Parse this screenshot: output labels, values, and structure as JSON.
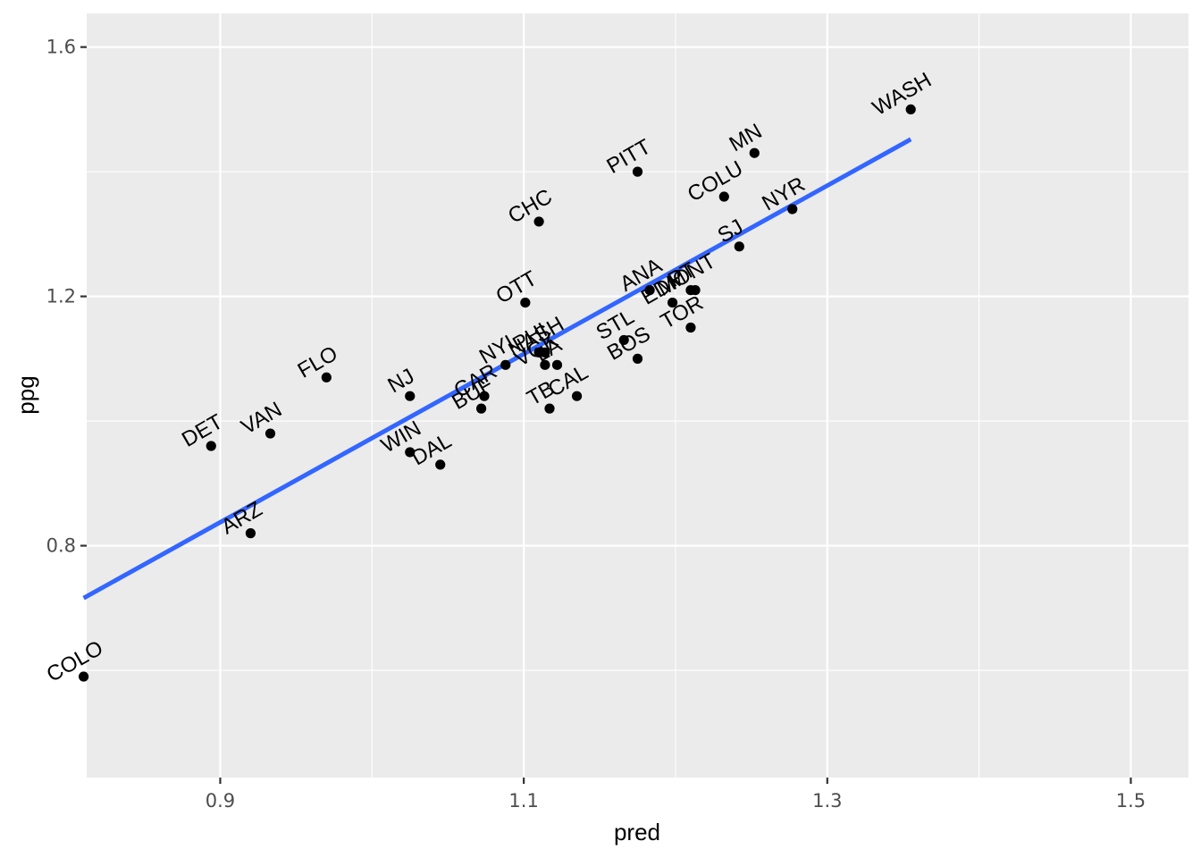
{
  "chart_data": {
    "type": "scatter",
    "title": "",
    "xlabel": "pred",
    "ylabel": "ppg",
    "xlim": [
      0.812,
      1.538
    ],
    "ylim": [
      0.428,
      1.654
    ],
    "x_ticks": [
      0.9,
      1.1,
      1.3,
      1.5
    ],
    "x_tick_labels": [
      "0.9",
      "1.1",
      "1.3",
      "1.5"
    ],
    "y_ticks": [
      0.8,
      1.2,
      1.6
    ],
    "y_tick_labels": [
      "0.8",
      "1.2",
      "1.6"
    ],
    "grid": true,
    "colors": {
      "panel": "#EBEBEB",
      "grid": "#FFFFFF",
      "point": "#000000",
      "fit_line": "#3366FF"
    },
    "points": [
      {
        "label": "COLO",
        "x": 0.81,
        "y": 0.59
      },
      {
        "label": "ARZ",
        "x": 0.92,
        "y": 0.82
      },
      {
        "label": "DET",
        "x": 0.894,
        "y": 0.96
      },
      {
        "label": "VAN",
        "x": 0.933,
        "y": 0.98
      },
      {
        "label": "FLO",
        "x": 0.97,
        "y": 1.07
      },
      {
        "label": "NJ",
        "x": 1.025,
        "y": 1.04
      },
      {
        "label": "WIN",
        "x": 1.025,
        "y": 0.95
      },
      {
        "label": "DAL",
        "x": 1.045,
        "y": 0.93
      },
      {
        "label": "BUF",
        "x": 1.072,
        "y": 1.02
      },
      {
        "label": "CAR",
        "x": 1.074,
        "y": 1.04
      },
      {
        "label": "NYI",
        "x": 1.088,
        "y": 1.09
      },
      {
        "label": "PHI",
        "x": 1.11,
        "y": 1.11
      },
      {
        "label": "NASH",
        "x": 1.114,
        "y": 1.11
      },
      {
        "label": "VGK",
        "x": 1.114,
        "y": 1.09
      },
      {
        "label": "TB",
        "x": 1.117,
        "y": 1.02
      },
      {
        "label": "LA",
        "x": 1.122,
        "y": 1.09
      },
      {
        "label": "CAL",
        "x": 1.135,
        "y": 1.04
      },
      {
        "label": "OTT",
        "x": 1.101,
        "y": 1.19
      },
      {
        "label": "CHC",
        "x": 1.11,
        "y": 1.32
      },
      {
        "label": "STL",
        "x": 1.166,
        "y": 1.13
      },
      {
        "label": "BOS",
        "x": 1.175,
        "y": 1.1
      },
      {
        "label": "ANA",
        "x": 1.183,
        "y": 1.21
      },
      {
        "label": "EDM",
        "x": 1.198,
        "y": 1.19
      },
      {
        "label": "PT",
        "x": 1.21,
        "y": 1.21
      },
      {
        "label": "MONT",
        "x": 1.213,
        "y": 1.21
      },
      {
        "label": "TOR",
        "x": 1.21,
        "y": 1.15
      },
      {
        "label": "PITT",
        "x": 1.175,
        "y": 1.4
      },
      {
        "label": "COLU",
        "x": 1.232,
        "y": 1.36
      },
      {
        "label": "SJ",
        "x": 1.242,
        "y": 1.28
      },
      {
        "label": "MN",
        "x": 1.252,
        "y": 1.43
      },
      {
        "label": "NYR",
        "x": 1.277,
        "y": 1.34
      },
      {
        "label": "WASH",
        "x": 1.355,
        "y": 1.5
      }
    ],
    "fit_line": {
      "x": [
        0.81,
        1.355
      ],
      "y": [
        0.716,
        1.452
      ]
    }
  }
}
